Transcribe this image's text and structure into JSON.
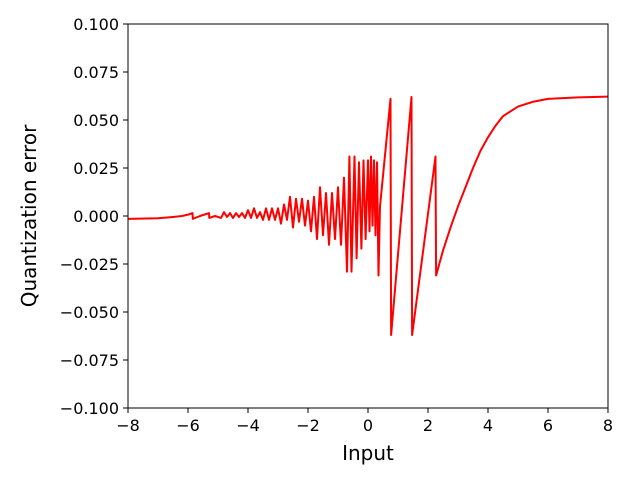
{
  "chart_data": {
    "type": "line",
    "title": "",
    "xlabel": "Input",
    "ylabel": "Quantization error",
    "xlim": [
      -8,
      8
    ],
    "ylim": [
      -0.1,
      0.1
    ],
    "grid": false,
    "x_ticks": [
      -8,
      -6,
      -4,
      -2,
      0,
      2,
      4,
      6,
      8
    ],
    "x_tick_labels": [
      "−8",
      "−6",
      "−4",
      "−2",
      "0",
      "2",
      "4",
      "6",
      "8"
    ],
    "y_ticks": [
      -0.1,
      -0.075,
      -0.05,
      -0.025,
      0.0,
      0.025,
      0.05,
      0.075,
      0.1
    ],
    "y_tick_labels": [
      "−0.100",
      "−0.075",
      "−0.050",
      "−0.025",
      "0.000",
      "0.025",
      "0.050",
      "0.075",
      "0.100"
    ],
    "series": [
      {
        "color": "#ff0000",
        "x": [
          -8.0,
          -7.0,
          -6.5,
          -6.2,
          -6.0,
          -5.85,
          -5.84,
          -5.6,
          -5.3,
          -5.29,
          -5.1,
          -4.9,
          -4.8,
          -4.7,
          -4.6,
          -4.5,
          -4.4,
          -4.3,
          -4.2,
          -4.1,
          -4.0,
          -3.9,
          -3.8,
          -3.7,
          -3.6,
          -3.5,
          -3.4,
          -3.3,
          -3.2,
          -3.1,
          -3.0,
          -2.9,
          -2.8,
          -2.7,
          -2.6,
          -2.5,
          -2.4,
          -2.3,
          -2.2,
          -2.1,
          -2.0,
          -1.9,
          -1.8,
          -1.7,
          -1.6,
          -1.5,
          -1.4,
          -1.3,
          -1.2,
          -1.1,
          -1.0,
          -0.9,
          -0.8,
          -0.7,
          -0.62,
          -0.55,
          -0.45,
          -0.38,
          -0.3,
          -0.22,
          -0.15,
          -0.08,
          0.0,
          0.05,
          0.1,
          0.15,
          0.2,
          0.25,
          0.3,
          0.35,
          0.4,
          0.75,
          0.77,
          1.45,
          1.47,
          2.25,
          2.27,
          2.5,
          2.75,
          3.0,
          3.25,
          3.5,
          3.75,
          4.0,
          4.25,
          4.5,
          5.0,
          5.5,
          6.0,
          7.0,
          8.0
        ],
        "y": [
          -0.0015,
          -0.0012,
          -0.0005,
          0.0,
          0.0007,
          0.0015,
          -0.0015,
          0.0,
          0.0015,
          -0.001,
          0.0,
          -0.001,
          0.002,
          -0.0005,
          0.0015,
          -0.001,
          0.0015,
          -0.0005,
          0.0015,
          -0.001,
          0.003,
          -0.001,
          0.004,
          -0.001,
          0.002,
          -0.002,
          0.004,
          -0.002,
          0.004,
          -0.002,
          0.004,
          -0.004,
          0.006,
          -0.002,
          0.01,
          -0.006,
          0.009,
          -0.003,
          0.009,
          -0.005,
          0.008,
          -0.008,
          0.01,
          -0.012,
          0.015,
          -0.01,
          0.012,
          -0.015,
          0.012,
          -0.012,
          0.015,
          -0.015,
          0.02,
          -0.029,
          0.031,
          -0.029,
          0.031,
          -0.022,
          0.028,
          -0.017,
          0.029,
          -0.012,
          0.029,
          -0.008,
          0.031,
          -0.005,
          0.029,
          -0.01,
          0.028,
          -0.031,
          0.005,
          0.061,
          -0.062,
          0.062,
          -0.062,
          0.031,
          -0.031,
          -0.018,
          -0.006,
          0.005,
          0.015,
          0.025,
          0.034,
          0.041,
          0.047,
          0.052,
          0.057,
          0.0595,
          0.061,
          0.0618,
          0.0622
        ]
      }
    ]
  }
}
